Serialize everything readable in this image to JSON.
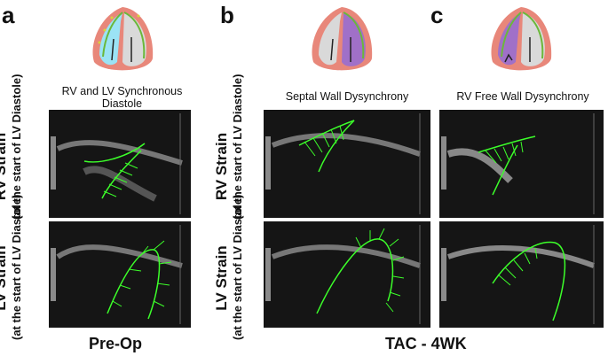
{
  "panels": {
    "a": {
      "letter": "a",
      "title_line1": "RV and LV Synchronous",
      "title_line2": "Diastole"
    },
    "b": {
      "letter": "b",
      "title": "Septal Wall Dysynchrony"
    },
    "c": {
      "letter": "c",
      "title": "RV Free Wall Dysynchrony"
    }
  },
  "row_labels": {
    "rv": {
      "main": "RV Strain",
      "sub": "(at the start of LV Diastole)"
    },
    "lv": {
      "main": "LV Strain",
      "sub": "(at the start of LV Diastole)"
    }
  },
  "bottom_labels": {
    "preop": "Pre-Op",
    "tac": "TAC - 4WK"
  },
  "colors": {
    "tracking": "#3cff2a",
    "heart_outer": "#e8877a",
    "rv_fill": "#9be3f5",
    "dys_fill": "#a070c8",
    "lv_fill": "#d9d9d9"
  }
}
